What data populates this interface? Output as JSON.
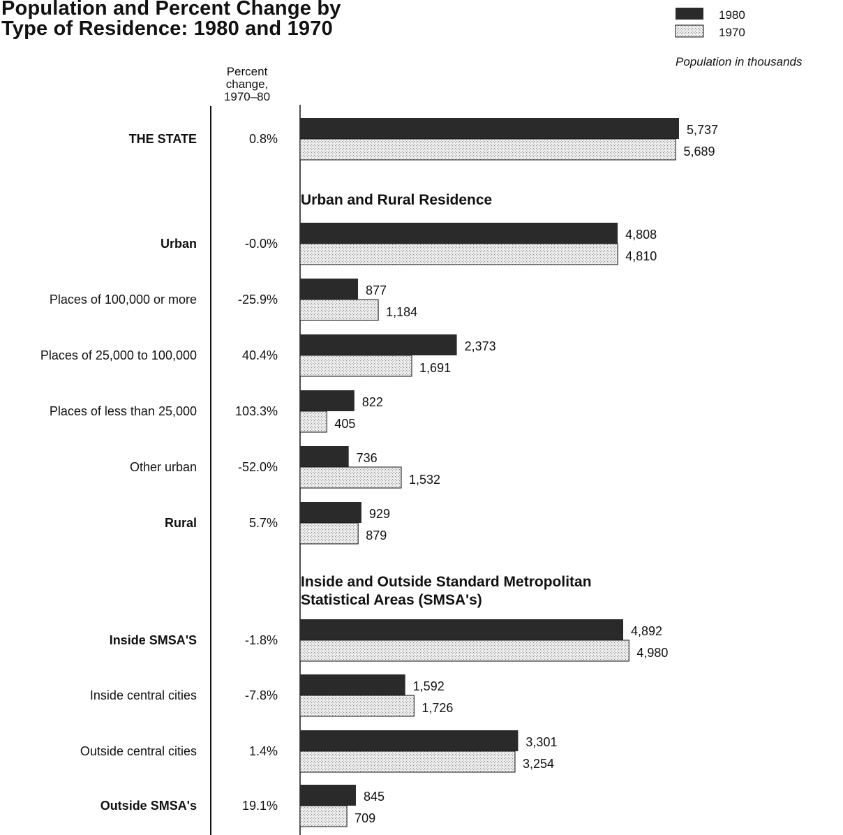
{
  "chart_data": {
    "type": "bar",
    "orientation": "horizontal",
    "title_lines": [
      "Population and Percent Change by",
      "Type of Residence: 1980 and 1970"
    ],
    "units_label": "Population in thousands",
    "percent_header": [
      "Percent",
      "change,",
      "1970–80"
    ],
    "legend": {
      "placement": "top-right",
      "items": [
        {
          "name": "1980",
          "color": "#2a2a2a",
          "pattern": "solid-dark"
        },
        {
          "name": "1970",
          "color": "#e6e6e6",
          "pattern": "stipple"
        }
      ]
    },
    "xlim": [
      0,
      5737
    ],
    "series": [
      {
        "name": "1980",
        "values": [
          5737,
          4808,
          877,
          2373,
          822,
          736,
          929,
          4892,
          1592,
          3301,
          845
        ]
      },
      {
        "name": "1970",
        "values": [
          5689,
          4810,
          1184,
          1691,
          405,
          1532,
          879,
          4980,
          1726,
          3254,
          709
        ]
      }
    ],
    "rows": [
      {
        "label": "THE STATE",
        "bold": true,
        "pct": "0.8%",
        "v1980": 5737,
        "v1970": 5689,
        "t1980": "5,737",
        "t1970": "5,689"
      },
      {
        "label": "Urban",
        "bold": true,
        "pct": "-0.0%",
        "v1980": 4808,
        "v1970": 4810,
        "t1980": "4,808",
        "t1970": "4,810"
      },
      {
        "label": "Places of 100,000 or more",
        "bold": false,
        "pct": "-25.9%",
        "v1980": 877,
        "v1970": 1184,
        "t1980": "877",
        "t1970": "1,184"
      },
      {
        "label": "Places of 25,000 to 100,000",
        "bold": false,
        "pct": "40.4%",
        "v1980": 2373,
        "v1970": 1691,
        "t1980": "2,373",
        "t1970": "1,691"
      },
      {
        "label": "Places of less than 25,000",
        "bold": false,
        "pct": "103.3%",
        "v1980": 822,
        "v1970": 405,
        "t1980": "822",
        "t1970": "405"
      },
      {
        "label": "Other urban",
        "bold": false,
        "pct": "-52.0%",
        "v1980": 736,
        "v1970": 1532,
        "t1980": "736",
        "t1970": "1,532"
      },
      {
        "label": "Rural",
        "bold": true,
        "pct": "5.7%",
        "v1980": 929,
        "v1970": 879,
        "t1980": "929",
        "t1970": "879"
      },
      {
        "label": "Inside SMSA'S",
        "bold": true,
        "pct": "-1.8%",
        "v1980": 4892,
        "v1970": 4980,
        "t1980": "4,892",
        "t1970": "4,980"
      },
      {
        "label": "Inside central cities",
        "bold": false,
        "pct": "-7.8%",
        "v1980": 1592,
        "v1970": 1726,
        "t1980": "1,592",
        "t1970": "1,726"
      },
      {
        "label": "Outside central cities",
        "bold": false,
        "pct": "1.4%",
        "v1980": 3301,
        "v1970": 3254,
        "t1980": "3,301",
        "t1970": "3,254"
      },
      {
        "label": "Outside SMSA's",
        "bold": true,
        "pct": "19.1%",
        "v1980": 845,
        "v1970": 709,
        "t1980": "845",
        "t1970": "709"
      }
    ],
    "sections": [
      {
        "lines": [
          "Urban and Rural Residence"
        ],
        "before_row": 1
      },
      {
        "lines": [
          "Inside and Outside Standard Metropolitan",
          "Statistical Areas (SMSA's)"
        ],
        "before_row": 7
      }
    ]
  }
}
